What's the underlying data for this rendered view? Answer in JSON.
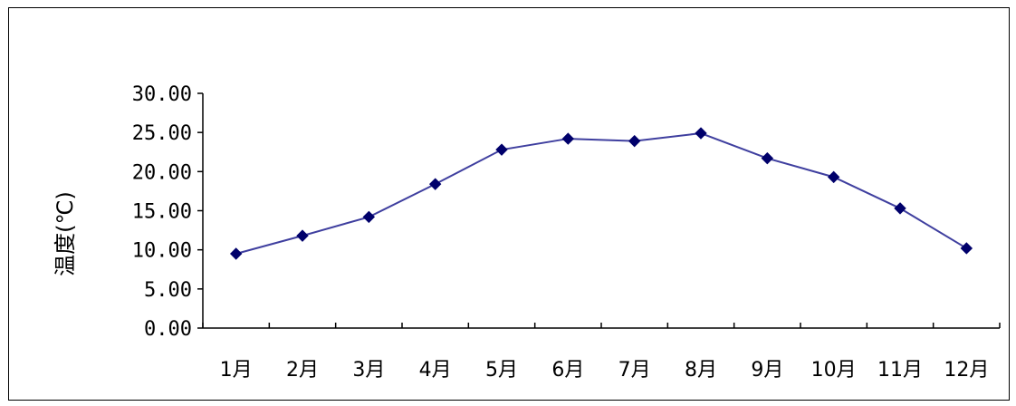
{
  "chart_data": {
    "type": "line",
    "title": "",
    "xlabel": "",
    "ylabel": "温度(℃)",
    "categories": [
      "1月",
      "2月",
      "3月",
      "4月",
      "5月",
      "6月",
      "7月",
      "8月",
      "9月",
      "10月",
      "11月",
      "12月"
    ],
    "series": [
      {
        "values": [
          9.5,
          11.8,
          14.2,
          18.4,
          22.8,
          24.2,
          23.9,
          24.9,
          21.7,
          19.3,
          15.3,
          10.2
        ]
      }
    ],
    "ylim": [
      0,
      30
    ],
    "yticks": [
      "0.00",
      "5.00",
      "10.00",
      "15.00",
      "20.00",
      "25.00",
      "30.00"
    ],
    "grid": false,
    "legend": "none",
    "colors": {
      "line": "#3f3f9f",
      "marker": "#00006b",
      "axis": "#000000"
    }
  }
}
